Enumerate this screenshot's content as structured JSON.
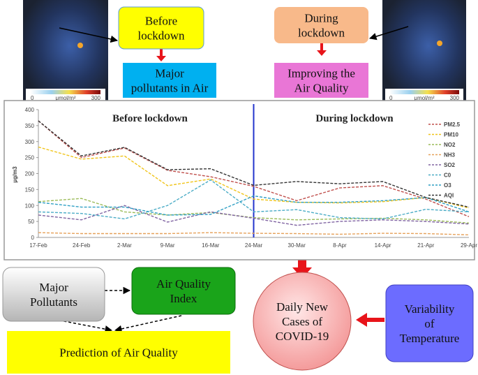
{
  "maps": [
    {
      "scale_min": "0",
      "unit": "μmol/m²",
      "scale_max": "300"
    },
    {
      "scale_min": "0",
      "unit": "μmol/m²",
      "scale_max": "300"
    }
  ],
  "nodes": {
    "before": {
      "lines": [
        "Before",
        "lockdown"
      ]
    },
    "pollutants_air": {
      "lines": [
        "Major",
        "pollutants in Air"
      ]
    },
    "during": {
      "lines": [
        "During",
        "lockdown"
      ]
    },
    "improving": {
      "lines": [
        "Improving the",
        "Air Quality"
      ]
    },
    "major_pollutants": {
      "lines": [
        "Major",
        "Pollutants"
      ]
    },
    "aqi": {
      "lines": [
        "Air Quality",
        "Index"
      ]
    },
    "prediction": {
      "lines": [
        "Prediction of Air Quality"
      ]
    },
    "covid": {
      "lines": [
        "Daily New",
        "Cases of",
        "COVID-19"
      ]
    },
    "temperature": {
      "lines": [
        "Variability",
        "of",
        "Temperature"
      ]
    }
  },
  "chart_data": {
    "type": "line",
    "annotations": [
      "Before lockdown",
      "During lockdown"
    ],
    "y_label": "µg/m3",
    "categories": [
      "17-Feb",
      "24-Feb",
      "2-Mar",
      "9-Mar",
      "16-Mar",
      "24-Mar",
      "30-Mar",
      "8-Apr",
      "14-Apr",
      "21-Apr",
      "29-Apr"
    ],
    "ylim": [
      0,
      400
    ],
    "yticks": [
      0,
      50,
      100,
      150,
      200,
      250,
      300,
      350,
      400
    ],
    "series": [
      {
        "name": "PM2.5",
        "color": "#c0504d",
        "values": [
          365,
          250,
          280,
          210,
          190,
          160,
          115,
          155,
          162,
          120,
          65
        ]
      },
      {
        "name": "PM10",
        "color": "#f0c419",
        "values": [
          283,
          245,
          255,
          162,
          183,
          120,
          110,
          108,
          112,
          125,
          92
        ]
      },
      {
        "name": "NO2",
        "color": "#9bbb59",
        "values": [
          112,
          122,
          80,
          70,
          78,
          62,
          55,
          58,
          60,
          55,
          45
        ]
      },
      {
        "name": "NH3",
        "color": "#e6a15a",
        "values": [
          15,
          12,
          12,
          12,
          15,
          13,
          12,
          10,
          13,
          12,
          8
        ]
      },
      {
        "name": "SO2",
        "color": "#8064a2",
        "values": [
          70,
          55,
          100,
          48,
          80,
          60,
          38,
          50,
          55,
          50,
          42
        ]
      },
      {
        "name": "C0",
        "color": "#4bacc6",
        "values": [
          80,
          75,
          58,
          100,
          180,
          80,
          87,
          62,
          58,
          88,
          80
        ]
      },
      {
        "name": "O3",
        "color": "#2e9fc4",
        "values": [
          110,
          95,
          95,
          70,
          72,
          130,
          110,
          110,
          115,
          125,
          80
        ]
      },
      {
        "name": "AQI",
        "color": "#333333",
        "values": [
          365,
          255,
          282,
          212,
          215,
          163,
          175,
          168,
          175,
          125,
          95
        ]
      }
    ]
  }
}
